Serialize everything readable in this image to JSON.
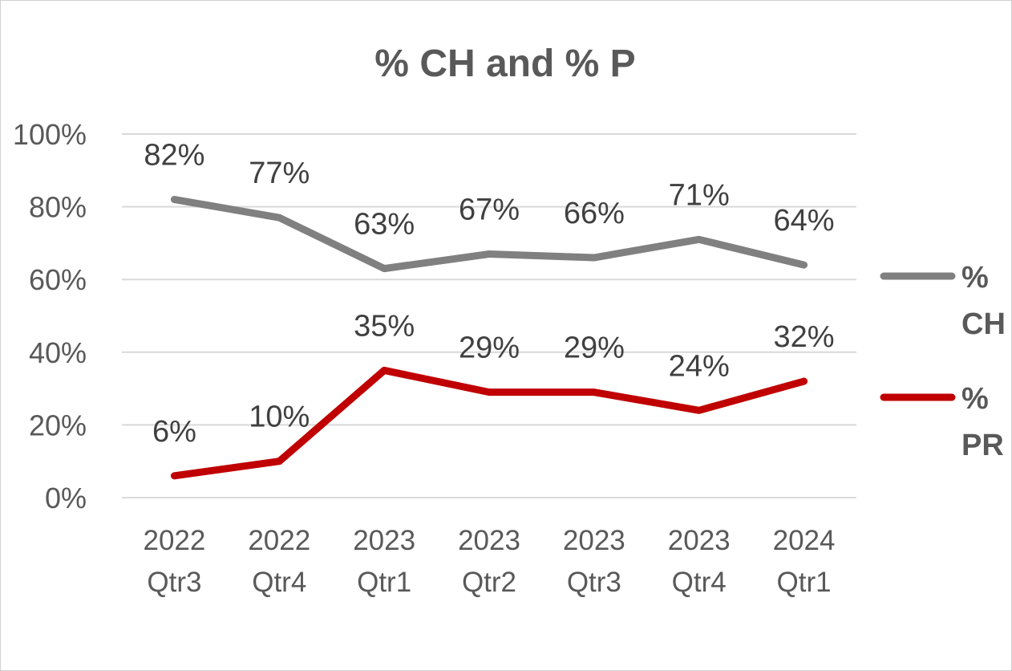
{
  "chart_data": {
    "type": "line",
    "title": "% CH and % P",
    "categories": [
      [
        "2022",
        "Qtr3"
      ],
      [
        "2022",
        "Qtr4"
      ],
      [
        "2023",
        "Qtr1"
      ],
      [
        "2023",
        "Qtr2"
      ],
      [
        "2023",
        "Qtr3"
      ],
      [
        "2023",
        "Qtr4"
      ],
      [
        "2024",
        "Qtr1"
      ]
    ],
    "y_ticks": [
      "0%",
      "20%",
      "40%",
      "60%",
      "80%",
      "100%"
    ],
    "ylim": [
      0,
      100
    ],
    "grid": true,
    "legend_position": "right",
    "series": [
      {
        "name": [
          "%",
          "CH"
        ],
        "color": "#808080",
        "values": [
          82,
          77,
          63,
          67,
          66,
          71,
          64
        ],
        "labels": [
          "82%",
          "77%",
          "63%",
          "67%",
          "66%",
          "71%",
          "64%"
        ]
      },
      {
        "name": [
          "%",
          "PR"
        ],
        "color": "#c00000",
        "values": [
          6,
          10,
          35,
          29,
          29,
          24,
          32
        ],
        "labels": [
          "6%",
          "10%",
          "35%",
          "29%",
          "29%",
          "24%",
          "32%"
        ]
      }
    ]
  }
}
